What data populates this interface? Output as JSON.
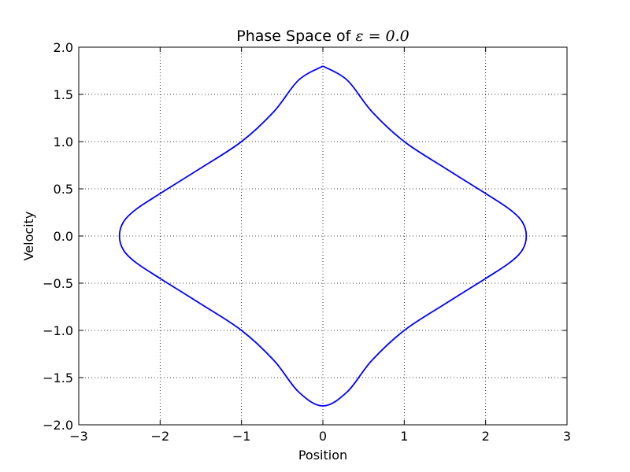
{
  "chart_data": {
    "type": "line",
    "title": "Phase Space of",
    "title_math": "ε = 0.0",
    "xlabel": "Position",
    "ylabel": "Velocity",
    "xlim": [
      -3,
      3
    ],
    "ylim": [
      -2,
      2
    ],
    "xticks": [
      -3,
      -2,
      -1,
      0,
      1,
      2,
      3
    ],
    "yticks": [
      -2.0,
      -1.5,
      -1.0,
      -0.5,
      0.0,
      0.5,
      1.0,
      1.5,
      2.0
    ],
    "xtick_labels": [
      "−3",
      "−2",
      "−1",
      "0",
      "1",
      "2",
      "3"
    ],
    "ytick_labels": [
      "−2.0",
      "−1.5",
      "−1.0",
      "−0.5",
      "0.0",
      "0.5",
      "1.0",
      "1.5",
      "2.0"
    ],
    "grid": true,
    "grid_style": "dotted",
    "line_color": "#0000ff",
    "series": [
      {
        "x": [
          0.0,
          0.3,
          0.6,
          1.0,
          1.5,
          2.0,
          2.3,
          2.45,
          2.5,
          2.45,
          2.3,
          2.0,
          1.5,
          1.0,
          0.6,
          0.3,
          0.0,
          -0.3,
          -0.6,
          -1.0,
          -1.5,
          -2.0,
          -2.3,
          -2.45,
          -2.5,
          -2.45,
          -2.3,
          -2.0,
          -1.5,
          -1.0,
          -0.6,
          -0.3,
          0.0
        ],
        "y": [
          1.8,
          1.65,
          1.32,
          1.0,
          0.72,
          0.45,
          0.28,
          0.15,
          0.0,
          -0.15,
          -0.28,
          -0.45,
          -0.72,
          -1.0,
          -1.32,
          -1.65,
          -1.8,
          -1.65,
          -1.32,
          -1.0,
          -0.72,
          -0.45,
          -0.28,
          -0.15,
          0.0,
          0.15,
          0.28,
          0.45,
          0.72,
          1.0,
          1.32,
          1.65,
          1.8
        ]
      }
    ]
  }
}
